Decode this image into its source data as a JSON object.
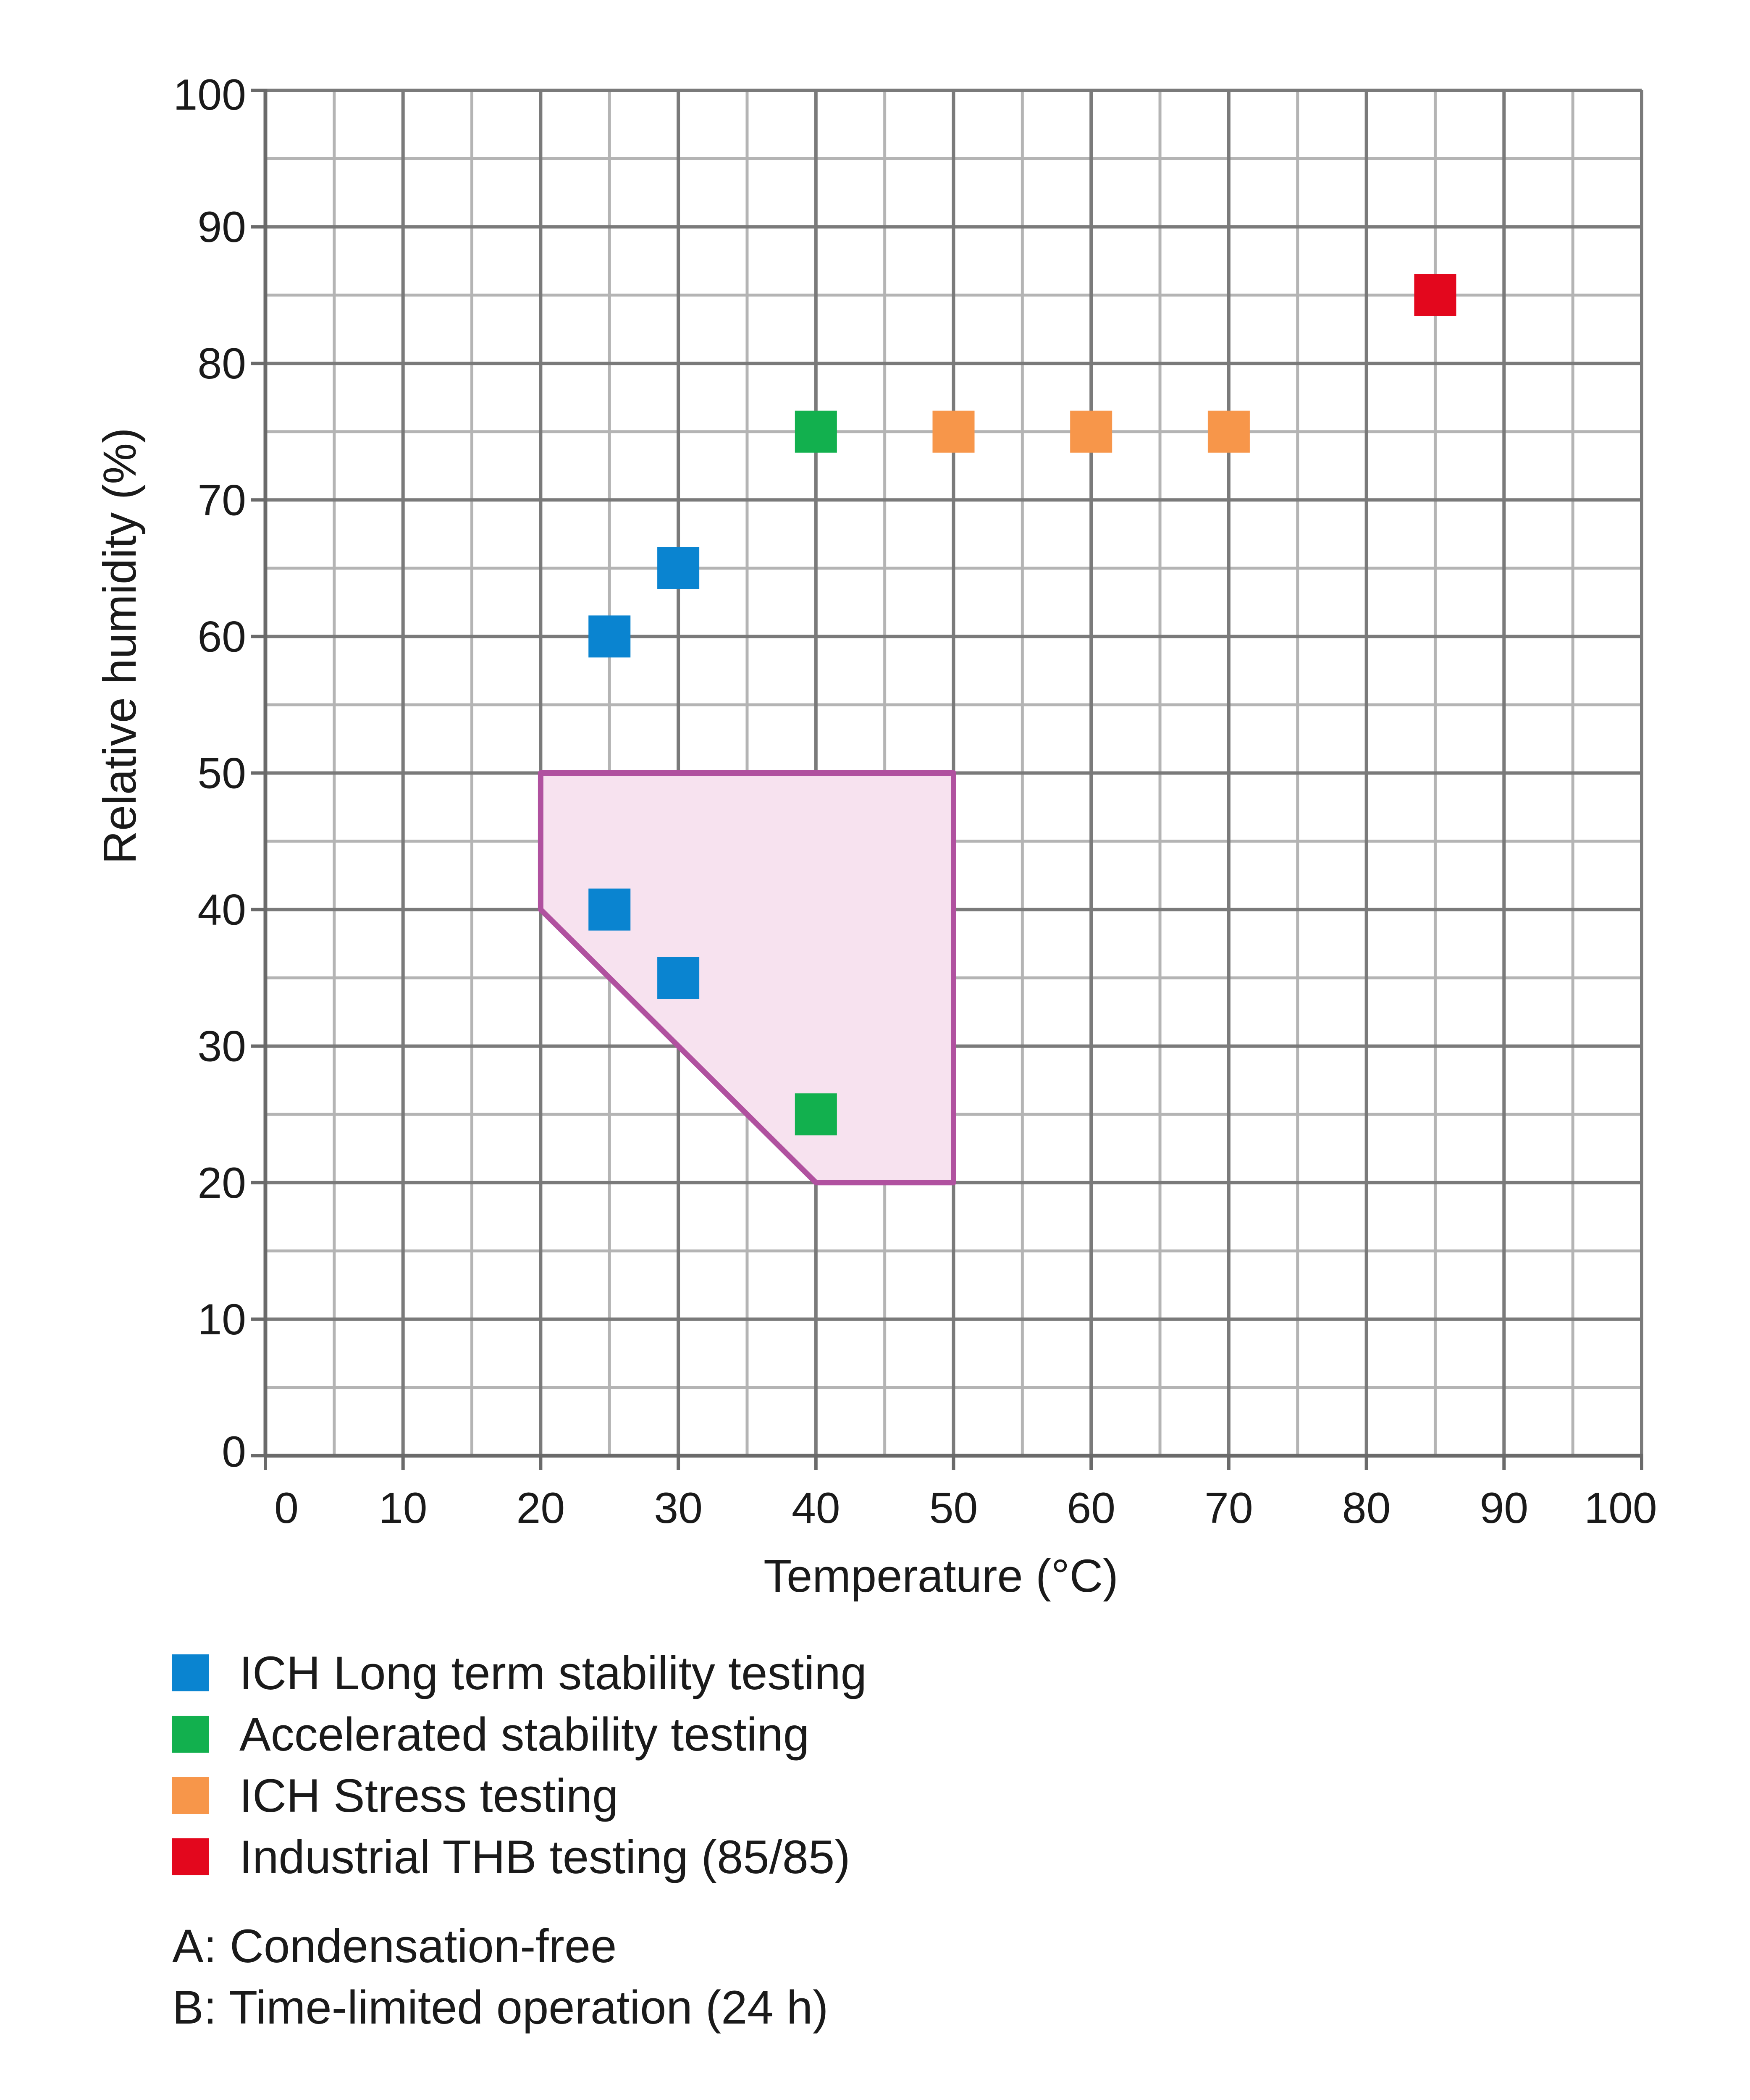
{
  "chart_data": {
    "type": "scatter",
    "title": "",
    "xlabel": "Temperature (°C)",
    "ylabel": "Relative humidity (%)",
    "xlim": [
      0,
      100
    ],
    "ylim": [
      0,
      100
    ],
    "x_ticks": [
      "0",
      "10",
      "20",
      "30",
      "40",
      "50",
      "60",
      "70",
      "80",
      "90",
      "100"
    ],
    "y_ticks": [
      "0",
      "10",
      "20",
      "30",
      "40",
      "50",
      "60",
      "70",
      "80",
      "90",
      "100"
    ],
    "grid": true,
    "minor_grid_step": 5,
    "series": [
      {
        "name": "ICH Long term stability testing",
        "color": "#0a84d0",
        "points": [
          [
            25,
            60
          ],
          [
            30,
            65
          ],
          [
            25,
            40
          ],
          [
            30,
            35
          ]
        ]
      },
      {
        "name": "Accelerated stability testing",
        "color": "#12b04e",
        "points": [
          [
            40,
            75
          ],
          [
            40,
            25
          ]
        ]
      },
      {
        "name": "ICH Stress testing",
        "color": "#f7964a",
        "points": [
          [
            50,
            75
          ],
          [
            60,
            75
          ],
          [
            70,
            75
          ]
        ]
      },
      {
        "name": "Industrial THB testing (85/85)",
        "color": "#e3071d",
        "points": [
          [
            85,
            85
          ]
        ]
      }
    ],
    "region": {
      "stroke": "#b0519f",
      "fill": "#f7e2ef",
      "polygon": [
        [
          20,
          50
        ],
        [
          50,
          50
        ],
        [
          50,
          20
        ],
        [
          40,
          20
        ],
        [
          20,
          40
        ]
      ]
    },
    "legend_position": "bottom-left",
    "notes": [
      "A: Condensation-free",
      "B: Time-limited operation (24 h)"
    ]
  }
}
